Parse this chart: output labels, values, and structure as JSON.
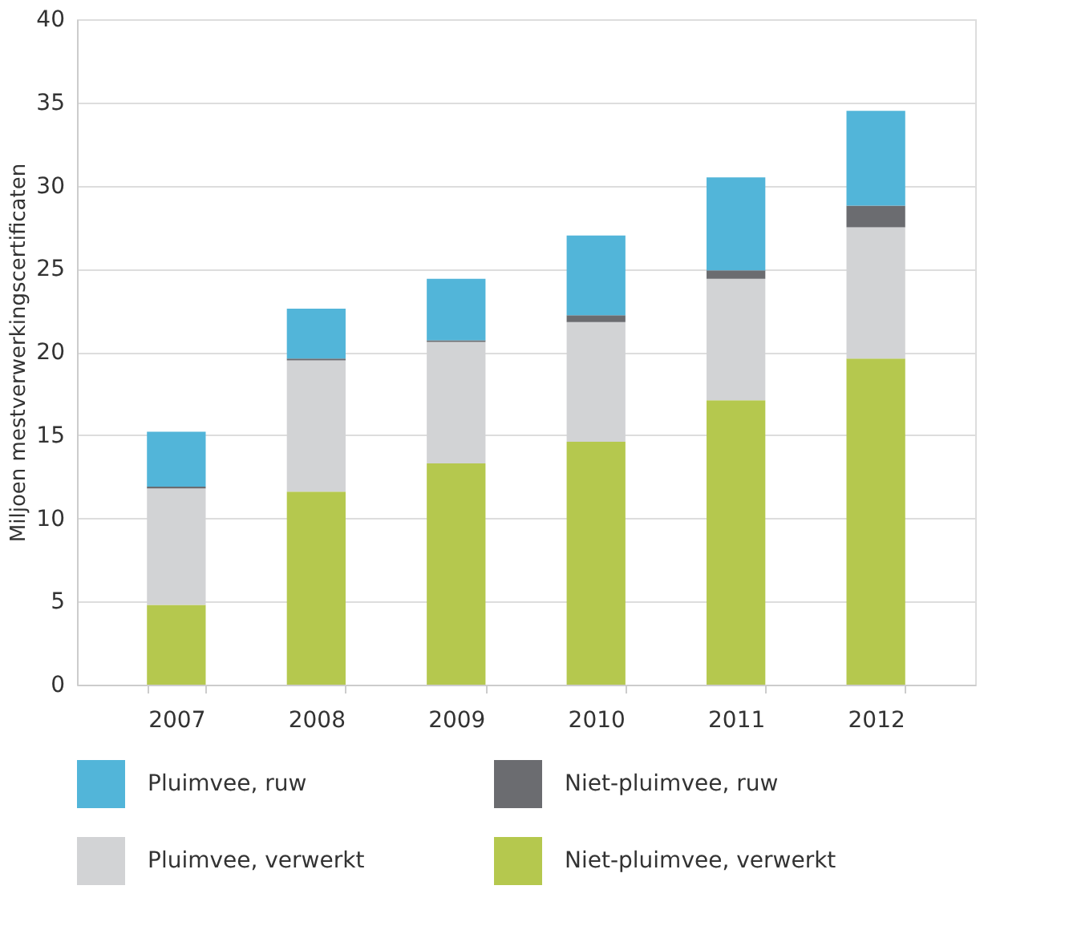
{
  "chart_data": {
    "type": "bar",
    "stacked": true,
    "ylabel": "Miljoen mestverwerkingscertificaten",
    "categories": [
      "2007",
      "2008",
      "2009",
      "2010",
      "2011",
      "2012"
    ],
    "series": [
      {
        "name": "Niet-pluimvee, verwerkt",
        "color": "#b5c84e",
        "values": [
          4.8,
          11.6,
          13.3,
          14.6,
          17.1,
          19.6
        ]
      },
      {
        "name": "Pluimvee, verwerkt",
        "color": "#d2d3d5",
        "values": [
          7.0,
          7.9,
          7.3,
          7.2,
          7.3,
          7.9
        ]
      },
      {
        "name": "Niet-pluimvee, ruw",
        "color": "#6b6c70",
        "values": [
          0.1,
          0.1,
          0.1,
          0.4,
          0.5,
          1.3
        ]
      },
      {
        "name": "Pluimvee, ruw",
        "color": "#52b5d9",
        "values": [
          3.3,
          3.0,
          3.7,
          4.8,
          5.6,
          5.7
        ]
      }
    ],
    "ylim": [
      0,
      40
    ],
    "yticks": [
      0,
      5,
      10,
      15,
      20,
      25,
      30,
      35,
      40
    ],
    "grid": "y",
    "legend": "bottom"
  }
}
